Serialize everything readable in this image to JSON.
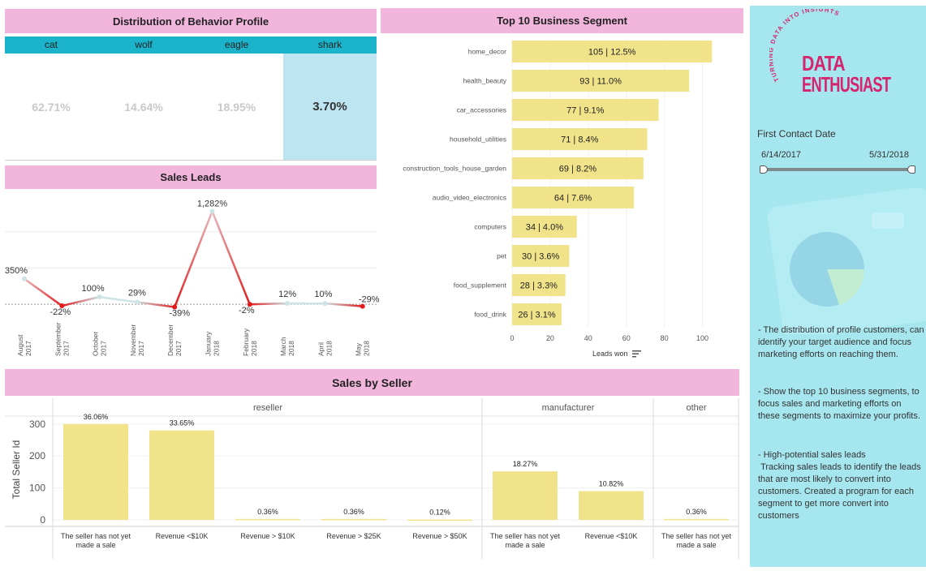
{
  "profile": {
    "title": "Distribution of Behavior Profile",
    "columns": [
      "cat",
      "wolf",
      "eagle",
      "shark"
    ],
    "values": [
      "62.71%",
      "14.64%",
      "18.95%",
      "3.70%"
    ],
    "highlighted": "shark",
    "colors": {
      "header": "#1ab3c9",
      "highlight": "#bde4f1"
    }
  },
  "sales_leads": {
    "title": "Sales Leads"
  },
  "segments": {
    "title": "Top 10 Business Segment",
    "axis_label": "Leads won"
  },
  "seller": {
    "title": "Sales by Seller",
    "ylabel": "Total Seller Id",
    "groups": [
      "reseller",
      "manufacturer",
      "other"
    ]
  },
  "sidebar": {
    "logo_arc": "TURNING DATA INTO INSIGHTS",
    "logo_line1": "DATA",
    "logo_line2": "ENTHUSIAST",
    "filter_label": "First Contact Date",
    "date_start": "6/14/2017",
    "date_end": "5/31/2018",
    "note1": "- The distribution of profile customers, can identify your target audience and focus marketing efforts on reaching them.",
    "note2": "- Show the top 10 business segments, to focus sales and marketing efforts on these segments to maximize your profits.",
    "note3": "- High-potential sales leads\n Tracking sales leads to identify the leads that are most likely to convert into customers. Created a program for each segment to get more convert into customers",
    "colors": {
      "bg": "#a6e6ee",
      "brand": "#d6246e"
    }
  },
  "chart_data": [
    {
      "type": "line",
      "title": "Sales Leads",
      "x": [
        "August 2017",
        "September 2017",
        "October 2017",
        "November 2017",
        "December 2017",
        "January 2018",
        "February 2018",
        "March 2018",
        "April 2018",
        "May 2018"
      ],
      "values": [
        350,
        -22,
        100,
        29,
        -39,
        1282,
        -2,
        12,
        10,
        -29
      ],
      "labels": [
        "350%",
        "-22%",
        "100%",
        "29%",
        "-39%",
        "1,282%",
        "-2%",
        "12%",
        "10%",
        "-29%"
      ],
      "ylim": [
        -100,
        1400
      ],
      "grid": true
    },
    {
      "type": "bar",
      "orientation": "horizontal",
      "title": "Top 10 Business Segment",
      "categories": [
        "home_decor",
        "health_beauty",
        "car_accessories",
        "household_utilities",
        "construction_tools_house_garden",
        "audio_video_electronics",
        "computers",
        "pet",
        "food_supplement",
        "food_drink"
      ],
      "values": [
        105,
        93,
        77,
        71,
        69,
        64,
        34,
        30,
        28,
        26
      ],
      "labels": [
        "105 | 12.5%",
        "93 | 11.0%",
        "77 | 9.1%",
        "71 | 8.4%",
        "69 | 8.2%",
        "64 | 7.6%",
        "34 | 4.0%",
        "30 | 3.6%",
        "28 | 3.3%",
        "26 | 3.1%"
      ],
      "xlabel": "Leads won",
      "xticks": [
        0,
        20,
        40,
        60,
        80,
        100
      ],
      "xlim": [
        0,
        110
      ],
      "color": "#f0e38a"
    },
    {
      "type": "bar",
      "title": "Sales by Seller",
      "ylabel": "Total Seller Id",
      "yticks": [
        0,
        100,
        200,
        300
      ],
      "ylim": [
        0,
        330
      ],
      "groups": [
        {
          "name": "reseller",
          "categories": [
            "The seller has not yet made a sale",
            "Revenue <$10K",
            "Revenue > $10K",
            "Revenue > $25K",
            "Revenue > $50K"
          ],
          "values": [
            300,
            280,
            3,
            3,
            1
          ],
          "labels": [
            "36.06%",
            "33.65%",
            "0.36%",
            "0.36%",
            "0.12%"
          ]
        },
        {
          "name": "manufacturer",
          "categories": [
            "The seller has not yet made a sale",
            "Revenue <$10K"
          ],
          "values": [
            152,
            90
          ],
          "labels": [
            "18.27%",
            "10.82%"
          ]
        },
        {
          "name": "other",
          "categories": [
            "The seller has not yet made a sale"
          ],
          "values": [
            3
          ],
          "labels": [
            "0.36%"
          ]
        }
      ],
      "color": "#f0e38a"
    }
  ]
}
